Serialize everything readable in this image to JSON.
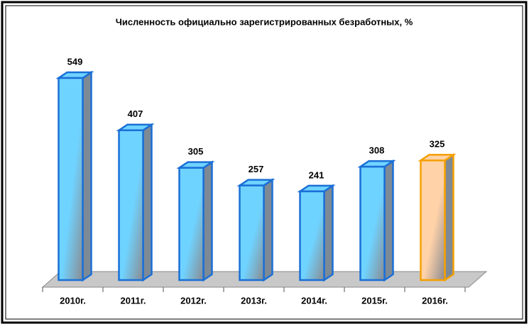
{
  "chart_data": {
    "type": "bar3d",
    "title": "Численность официально зарегистрированных безработных, %",
    "categories": [
      "2010г.",
      "2011г.",
      "2012г.",
      "2013г.",
      "2014г.",
      "2015г.",
      "2016г."
    ],
    "values": [
      549,
      407,
      305,
      257,
      241,
      308,
      325
    ],
    "colors": [
      "#1a6fd6",
      "#1a6fd6",
      "#1a6fd6",
      "#1a6fd6",
      "#1a6fd6",
      "#1a6fd6",
      "#f5a000"
    ],
    "light_colors": [
      "#6fd3ff",
      "#6fd3ff",
      "#6fd3ff",
      "#6fd3ff",
      "#6fd3ff",
      "#6fd3ff",
      "#ffd2a8"
    ]
  }
}
